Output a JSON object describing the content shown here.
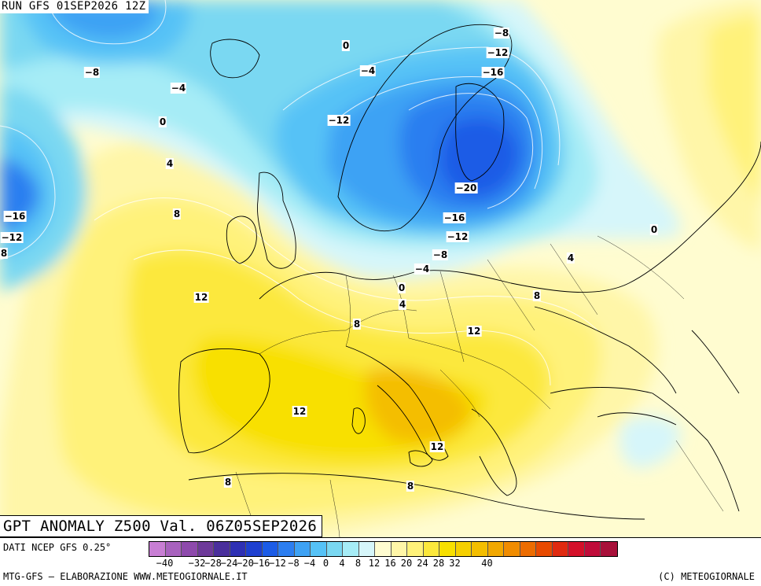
{
  "header": {
    "run_label": "RUN GFS 01SEP2026 12Z"
  },
  "title": {
    "text": "GPT ANOMALY Z500 Val. 06Z05SEP2026"
  },
  "footer": {
    "data_source": "DATI NCEP GFS 0.25°",
    "credit": "MTG-GFS – ELABORAZIONE WWW.METEOGIORNALE.IT",
    "copyright": "(C) METEOGIORNALE"
  },
  "legend": {
    "ticks": [
      "−40",
      "−32",
      "−28",
      "−24",
      "−20",
      "−16",
      "−12",
      "−8",
      "−4",
      "0",
      "4",
      "8",
      "12",
      "16",
      "20",
      "24",
      "28",
      "32",
      "40"
    ],
    "colors": [
      "#c87ed4",
      "#a862be",
      "#8e4aac",
      "#6e3a9a",
      "#4a2f9c",
      "#2e30b4",
      "#1e40d0",
      "#1c5ce6",
      "#2c7ef0",
      "#3ea2f4",
      "#56c2f6",
      "#7ad8f2",
      "#a6ecf6",
      "#d6f6fa",
      "#fffcd0",
      "#fff6a8",
      "#fff27a",
      "#fce83c",
      "#f8e000",
      "#f6d000",
      "#f4be00",
      "#f2a800",
      "#f08c00",
      "#ec6c00",
      "#e84a00",
      "#e02a10",
      "#d4102a",
      "#c00c3a",
      "#a8103a"
    ]
  },
  "map_labels": [
    {
      "text": "0",
      "id": "c1"
    },
    {
      "text": "−8",
      "id": "c2"
    },
    {
      "text": "−4",
      "id": "c3"
    },
    {
      "text": "0",
      "id": "c4"
    },
    {
      "text": "4",
      "id": "c5"
    },
    {
      "text": "8",
      "id": "c6"
    },
    {
      "text": "−16",
      "id": "c7"
    },
    {
      "text": "−12",
      "id": "c8"
    },
    {
      "text": "8",
      "id": "c9"
    },
    {
      "text": "12",
      "id": "c10"
    },
    {
      "text": "−4",
      "id": "c11"
    },
    {
      "text": "−12",
      "id": "c12"
    },
    {
      "text": "−8",
      "id": "c13"
    },
    {
      "text": "−12",
      "id": "c14"
    },
    {
      "text": "−16",
      "id": "c15"
    },
    {
      "text": "−20",
      "id": "c16"
    },
    {
      "text": "−16",
      "id": "c17"
    },
    {
      "text": "−12",
      "id": "c18"
    },
    {
      "text": "−8",
      "id": "c19"
    },
    {
      "text": "−4",
      "id": "c20"
    },
    {
      "text": "0",
      "id": "c21"
    },
    {
      "text": "4",
      "id": "c22"
    },
    {
      "text": "8",
      "id": "c23"
    },
    {
      "text": "12",
      "id": "c24"
    },
    {
      "text": "8",
      "id": "c25"
    },
    {
      "text": "4",
      "id": "c26"
    },
    {
      "text": "0",
      "id": "c27"
    },
    {
      "text": "12",
      "id": "c28"
    },
    {
      "text": "12",
      "id": "c29"
    },
    {
      "text": "8",
      "id": "c30"
    },
    {
      "text": "8",
      "id": "c31"
    }
  ]
}
